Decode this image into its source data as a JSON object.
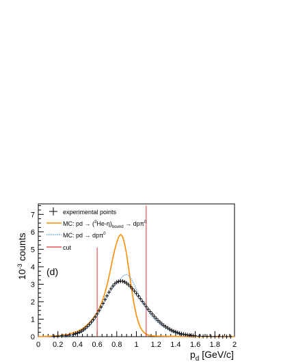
{
  "chart_data": {
    "type": "line",
    "panel_label": "(d)",
    "xlabel": {
      "main": "p",
      "sub": "d",
      "unit": " [GeV/c]"
    },
    "ylabel": {
      "base": "10",
      "exp": "-3",
      "unit": " counts"
    },
    "xlim": [
      0,
      2
    ],
    "ylim": [
      0,
      7.6
    ],
    "xticks": [
      0,
      0.2,
      0.4,
      0.6,
      0.8,
      1,
      1.2,
      1.4,
      1.6,
      1.8,
      2
    ],
    "yticks": [
      0,
      1,
      2,
      3,
      4,
      5,
      6,
      7
    ],
    "legend": {
      "experimental": "experimental points",
      "mc_bound": {
        "pre": "MC: pd → (",
        "sup3": "3",
        "mid": "He-η)",
        "sub": "bound",
        "post": " → dpπ",
        "sup0": "0"
      },
      "mc_phase": {
        "pre": "MC: pd → dpπ",
        "sup0": "0"
      },
      "cut": "cut"
    },
    "colors": {
      "experimental": "#000000",
      "mc_bound": "#ff8c00",
      "mc_phase": "#3b8bd9",
      "cut": "#e03030"
    },
    "cut_lines": [
      {
        "x": 0.6,
        "y_top": 5.1
      },
      {
        "x": 1.1,
        "y_top": 7.5
      }
    ],
    "series": [
      {
        "key": "experimental",
        "x": [
          0.16,
          0.2,
          0.24,
          0.28,
          0.32,
          0.36,
          0.38,
          0.4,
          0.42,
          0.44,
          0.46,
          0.48,
          0.5,
          0.52,
          0.54,
          0.56,
          0.58,
          0.6,
          0.62,
          0.64,
          0.66,
          0.68,
          0.7,
          0.72,
          0.74,
          0.76,
          0.78,
          0.8,
          0.82,
          0.84,
          0.86,
          0.88,
          0.9,
          0.92,
          0.94,
          0.96,
          0.98,
          1.0,
          1.02,
          1.04,
          1.06,
          1.08,
          1.1,
          1.12,
          1.14,
          1.16,
          1.18,
          1.2,
          1.22,
          1.24,
          1.26,
          1.28,
          1.3,
          1.32,
          1.34,
          1.36,
          1.38,
          1.4,
          1.42,
          1.44,
          1.46,
          1.48,
          1.5,
          1.52,
          1.54,
          1.56,
          1.58,
          1.6,
          1.64,
          1.68,
          1.72,
          1.76,
          1.8,
          1.84,
          1.88,
          1.92,
          1.96
        ],
        "y": [
          0.02,
          0.03,
          0.05,
          0.07,
          0.1,
          0.14,
          0.17,
          0.21,
          0.26,
          0.32,
          0.4,
          0.48,
          0.58,
          0.7,
          0.83,
          0.97,
          1.13,
          1.3,
          1.49,
          1.69,
          1.9,
          2.12,
          2.33,
          2.54,
          2.74,
          2.9,
          3.03,
          3.12,
          3.16,
          3.18,
          3.17,
          3.13,
          3.06,
          2.97,
          2.86,
          2.74,
          2.61,
          2.47,
          2.32,
          2.17,
          2.02,
          1.87,
          1.72,
          1.57,
          1.43,
          1.3,
          1.17,
          1.05,
          0.93,
          0.83,
          0.73,
          0.64,
          0.56,
          0.49,
          0.42,
          0.36,
          0.31,
          0.27,
          0.23,
          0.19,
          0.16,
          0.14,
          0.12,
          0.1,
          0.08,
          0.07,
          0.06,
          0.05,
          0.03,
          0.02,
          0.02,
          0.01,
          0.01,
          0.01,
          0.0,
          0.0,
          0.0
        ]
      },
      {
        "key": "mc_bound",
        "x": [
          0.0,
          0.1,
          0.2,
          0.3,
          0.4,
          0.45,
          0.5,
          0.55,
          0.6,
          0.62,
          0.64,
          0.66,
          0.68,
          0.7,
          0.72,
          0.74,
          0.76,
          0.78,
          0.8,
          0.82,
          0.84,
          0.86,
          0.88,
          0.9,
          0.92,
          0.94,
          0.96,
          0.98,
          1.0,
          1.02,
          1.04,
          1.06,
          1.08,
          1.1,
          1.12,
          1.15,
          1.2,
          1.3,
          1.4,
          1.5,
          2.0
        ],
        "y": [
          0.0,
          0.02,
          0.05,
          0.12,
          0.3,
          0.45,
          0.68,
          0.98,
          1.38,
          1.6,
          1.86,
          2.16,
          2.52,
          2.94,
          3.42,
          3.96,
          4.5,
          5.0,
          5.4,
          5.72,
          5.85,
          5.72,
          5.3,
          4.7,
          3.95,
          3.15,
          2.4,
          1.75,
          1.22,
          0.82,
          0.54,
          0.35,
          0.22,
          0.14,
          0.09,
          0.05,
          0.03,
          0.02,
          0.01,
          0.0,
          0.0
        ]
      },
      {
        "key": "mc_phase",
        "x": [
          0.2,
          0.3,
          0.4,
          0.45,
          0.5,
          0.55,
          0.6,
          0.65,
          0.7,
          0.75,
          0.8,
          0.84,
          0.86,
          0.88,
          0.9,
          0.92,
          0.94,
          0.96,
          0.98,
          1.0,
          1.02,
          1.05,
          1.1,
          1.15,
          1.2,
          1.25,
          1.3,
          1.35,
          1.4,
          1.45,
          1.5,
          1.55,
          1.6,
          1.7,
          1.8
        ],
        "y": [
          0.0,
          0.04,
          0.15,
          0.28,
          0.48,
          0.78,
          1.2,
          1.72,
          2.25,
          2.72,
          3.06,
          3.32,
          3.45,
          3.52,
          3.55,
          3.5,
          3.38,
          3.18,
          2.96,
          2.7,
          2.46,
          2.14,
          1.62,
          1.2,
          0.9,
          0.66,
          0.46,
          0.3,
          0.19,
          0.11,
          0.06,
          0.03,
          0.02,
          0.01,
          0.0
        ]
      }
    ]
  }
}
